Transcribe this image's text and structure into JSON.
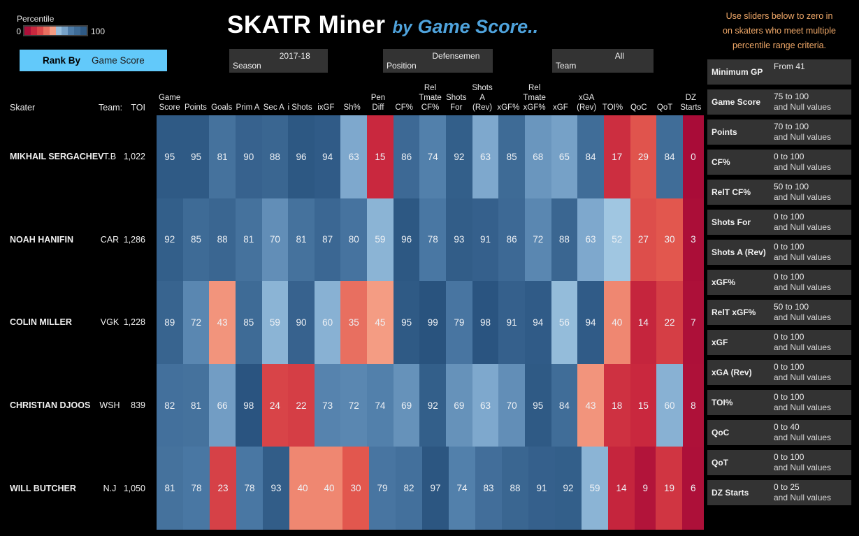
{
  "legend": {
    "title": "Percentile",
    "min": "0",
    "max": "100"
  },
  "rank_by": {
    "label": "Rank By",
    "value": "Game Score"
  },
  "title": {
    "main": "SKATR Miner",
    "by": "by",
    "suffix": "Game Score.."
  },
  "filters": [
    {
      "label": "Season",
      "value": "2017-18"
    },
    {
      "label": "Position",
      "value": "Defensemen"
    },
    {
      "label": "Team",
      "value": "All"
    }
  ],
  "sidebar": {
    "instructions_lines": [
      "Use sliders below to zero in",
      "on skaters who meet multiple",
      "percentile range criteria."
    ],
    "sliders": [
      {
        "label": "Minimum GP",
        "range": "From 41",
        "null_line": ""
      },
      {
        "label": "Game Score",
        "range": "75 to 100",
        "null_line": "and Null values"
      },
      {
        "label": "Points",
        "range": "70 to 100",
        "null_line": "and Null values"
      },
      {
        "label": "CF%",
        "range": "0 to 100",
        "null_line": "and Null values"
      },
      {
        "label": "RelT CF%",
        "range": "50 to 100",
        "null_line": "and Null values"
      },
      {
        "label": "Shots For",
        "range": "0 to 100",
        "null_line": "and Null values"
      },
      {
        "label": "Shots A (Rev)",
        "range": "0 to 100",
        "null_line": "and Null values"
      },
      {
        "label": "xGF%",
        "range": "0 to 100",
        "null_line": "and Null values"
      },
      {
        "label": "RelT xGF%",
        "range": "50 to 100",
        "null_line": "and Null values"
      },
      {
        "label": "xGF",
        "range": "0 to 100",
        "null_line": "and Null values"
      },
      {
        "label": "xGA (Rev)",
        "range": "0 to 100",
        "null_line": "and Null values"
      },
      {
        "label": "TOI%",
        "range": "0 to 100",
        "null_line": "and Null values"
      },
      {
        "label": "QoC",
        "range": "0 to 40",
        "null_line": "and Null values"
      },
      {
        "label": "QoT",
        "range": "0 to 100",
        "null_line": "and Null values"
      },
      {
        "label": "DZ Starts",
        "range": "0 to 25",
        "null_line": "and Null values"
      }
    ]
  },
  "table": {
    "skater_header": "Skater",
    "team_header": "Team:",
    "toi_header": "TOI",
    "header_lines": [
      [
        "Game",
        "Score"
      ],
      [
        "Points"
      ],
      [
        "Goals"
      ],
      [
        "Prim A"
      ],
      [
        "Sec A"
      ],
      [
        "i Shots"
      ],
      [
        "ixGF"
      ],
      [
        "Sh%"
      ],
      [
        "Pen",
        "Diff"
      ],
      [
        "CF%"
      ],
      [
        "Rel",
        "Tmate",
        "CF%"
      ],
      [
        "Shots",
        "For"
      ],
      [
        "Shots",
        "A",
        "(Rev)"
      ],
      [
        "xGF%"
      ],
      [
        "Rel",
        "Tmate",
        "xGF%"
      ],
      [
        "xGF"
      ],
      [
        "xGA",
        "(Rev)"
      ],
      [
        "TOI%"
      ],
      [
        "QoC"
      ],
      [
        "QoT"
      ],
      [
        "DZ",
        "Starts"
      ]
    ],
    "players": [
      {
        "name": "MIKHAIL SERGACHEV",
        "team": "T.B",
        "toi": "1,022"
      },
      {
        "name": "NOAH HANIFIN",
        "team": "CAR",
        "toi": "1,286"
      },
      {
        "name": "COLIN MILLER",
        "team": "VGK",
        "toi": "1,228"
      },
      {
        "name": "CHRISTIAN DJOOS",
        "team": "WSH",
        "toi": "839"
      },
      {
        "name": "WILL BUTCHER",
        "team": "N.J",
        "toi": "1,050"
      }
    ]
  },
  "chart_data": {
    "type": "heatmap",
    "title": "SKATR Miner by Game Score..",
    "columns": [
      "Game Score",
      "Points",
      "Goals",
      "Prim A",
      "Sec A",
      "i Shots",
      "ixGF",
      "Sh%",
      "Pen Diff",
      "CF%",
      "Rel Tmate CF%",
      "Shots For",
      "Shots A (Rev)",
      "xGF%",
      "Rel Tmate xGF%",
      "xGF",
      "xGA (Rev)",
      "TOI%",
      "QoC",
      "QoT",
      "DZ Starts"
    ],
    "rows": [
      "MIKHAIL SERGACHEV",
      "NOAH HANIFIN",
      "COLIN MILLER",
      "CHRISTIAN DJOOS",
      "WILL BUTCHER"
    ],
    "values": [
      [
        95,
        95,
        81,
        90,
        88,
        96,
        94,
        63,
        15,
        86,
        74,
        92,
        63,
        85,
        68,
        65,
        84,
        17,
        29,
        84,
        0
      ],
      [
        92,
        85,
        88,
        81,
        70,
        81,
        87,
        80,
        59,
        96,
        78,
        93,
        91,
        86,
        72,
        88,
        63,
        52,
        27,
        30,
        3
      ],
      [
        89,
        72,
        43,
        85,
        59,
        90,
        60,
        35,
        45,
        95,
        99,
        79,
        98,
        91,
        94,
        56,
        94,
        40,
        14,
        22,
        7
      ],
      [
        82,
        81,
        66,
        98,
        24,
        22,
        73,
        72,
        74,
        69,
        92,
        69,
        63,
        70,
        95,
        84,
        43,
        18,
        15,
        60,
        8
      ],
      [
        81,
        78,
        23,
        78,
        93,
        40,
        40,
        30,
        79,
        82,
        97,
        74,
        83,
        88,
        91,
        92,
        59,
        14,
        9,
        19,
        6
      ]
    ],
    "scale": {
      "min": 0,
      "max": 100,
      "legend_position": "top-left",
      "palette": "red-blue diverging"
    }
  },
  "colors": {
    "background": "#000000",
    "panel": "#333333",
    "rank_button": "#62C9FA",
    "title_blue": "#4FA3DC",
    "instructions_orange": "#F0A868",
    "cell_text": "#EEF1F5",
    "palette_stops": [
      [
        0,
        "#A90C38"
      ],
      [
        8,
        "#AE1139"
      ],
      [
        15,
        "#C9283E"
      ],
      [
        30,
        "#E2574E"
      ],
      [
        42,
        "#F19078"
      ],
      [
        49.9,
        "#F8B095"
      ],
      [
        50,
        "#A6CBE4"
      ],
      [
        62,
        "#82ACD0"
      ],
      [
        75,
        "#4E7CA8"
      ],
      [
        100,
        "#27517C"
      ]
    ]
  }
}
